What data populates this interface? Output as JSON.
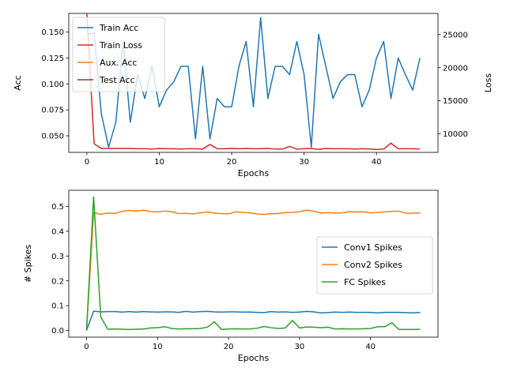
{
  "chart_data": [
    {
      "type": "line",
      "xlabel": "Epochs",
      "ylabel": "Acc",
      "y2label": "Loss",
      "xlim": [
        -2.5,
        48.5
      ],
      "ylim": [
        0.034,
        0.168
      ],
      "y2lim": [
        7200,
        28200
      ],
      "xticks": [
        "0",
        "10",
        "20",
        "30",
        "40"
      ],
      "yticks": [
        "0.050",
        "0.075",
        "0.100",
        "0.125",
        "0.150"
      ],
      "y2ticks": [
        "10000",
        "15000",
        "20000",
        "25000"
      ],
      "legend_position": "top-left",
      "colors": {
        "train_acc": "#1f77b4",
        "train_loss": "#d62728",
        "aux_acc": "#ff7f0e",
        "test_acc": "#8c3b2f"
      },
      "series": [
        {
          "name": "Train Acc",
          "axis": "left",
          "x": [
            0,
            1,
            2,
            3,
            4,
            5,
            6,
            7,
            8,
            9,
            10,
            11,
            12,
            13,
            14,
            15,
            16,
            17,
            18,
            19,
            20,
            21,
            22,
            23,
            24,
            25,
            26,
            27,
            28,
            29,
            30,
            31,
            32,
            33,
            34,
            35,
            36,
            37,
            38,
            39,
            40,
            41,
            42,
            43,
            44,
            45,
            46
          ],
          "values": [
            0.148,
            0.149,
            0.071,
            0.039,
            0.063,
            0.141,
            0.063,
            0.109,
            0.086,
            0.117,
            0.078,
            0.094,
            0.102,
            0.117,
            0.117,
            0.047,
            0.117,
            0.047,
            0.086,
            0.078,
            0.078,
            0.117,
            0.141,
            0.078,
            0.164,
            0.086,
            0.117,
            0.117,
            0.109,
            0.141,
            0.109,
            0.039,
            0.148,
            0.117,
            0.086,
            0.102,
            0.109,
            0.109,
            0.078,
            0.094,
            0.125,
            0.141,
            0.086,
            0.125,
            0.109,
            0.094,
            0.125
          ]
        },
        {
          "name": "Train Loss",
          "axis": "right",
          "x": [
            0,
            1,
            2,
            3,
            4,
            5,
            6,
            7,
            8,
            9,
            10,
            11,
            12,
            13,
            14,
            15,
            16,
            17,
            18,
            19,
            20,
            21,
            22,
            23,
            24,
            25,
            26,
            27,
            28,
            29,
            30,
            31,
            32,
            33,
            34,
            35,
            36,
            37,
            38,
            39,
            40,
            41,
            42,
            43,
            44,
            45,
            46
          ],
          "values": [
            28200,
            8500,
            7800,
            7800,
            7800,
            7800,
            7800,
            7750,
            7750,
            7700,
            7800,
            7750,
            7750,
            7700,
            7750,
            7750,
            7700,
            8400,
            7750,
            7750,
            7800,
            7750,
            7800,
            7750,
            7750,
            7800,
            7700,
            7700,
            8100,
            7700,
            7750,
            7800,
            7650,
            7800,
            7750,
            7750,
            7750,
            7700,
            7750,
            7700,
            7650,
            7700,
            8600,
            7750,
            7750,
            7750,
            7700
          ]
        },
        {
          "name": "Aux. Acc",
          "axis": "left",
          "x": [],
          "values": []
        },
        {
          "name": "Test Acc",
          "axis": "left",
          "x": [],
          "values": []
        }
      ]
    },
    {
      "type": "line",
      "xlabel": "Epochs",
      "ylabel": "# Spikes",
      "xlim": [
        -2.5,
        49.5
      ],
      "ylim": [
        -0.027,
        0.565
      ],
      "xticks": [
        "0",
        "10",
        "20",
        "30",
        "40"
      ],
      "yticks": [
        "0.0",
        "0.1",
        "0.2",
        "0.3",
        "0.4",
        "0.5"
      ],
      "legend_position": "center-right",
      "colors": {
        "conv1": "#1f77b4",
        "conv2": "#ff7f0e",
        "fc": "#2ca02c"
      },
      "series": [
        {
          "name": "Conv1 Spikes",
          "x": [
            0,
            1,
            2,
            3,
            4,
            5,
            6,
            7,
            8,
            9,
            10,
            11,
            12,
            13,
            14,
            15,
            16,
            17,
            18,
            19,
            20,
            21,
            22,
            23,
            24,
            25,
            26,
            27,
            28,
            29,
            30,
            31,
            32,
            33,
            34,
            35,
            36,
            37,
            38,
            39,
            40,
            41,
            42,
            43,
            44,
            45,
            46,
            47
          ],
          "values": [
            0.0,
            0.078,
            0.075,
            0.076,
            0.076,
            0.074,
            0.076,
            0.074,
            0.076,
            0.075,
            0.074,
            0.075,
            0.075,
            0.073,
            0.077,
            0.074,
            0.076,
            0.077,
            0.075,
            0.074,
            0.075,
            0.075,
            0.074,
            0.074,
            0.073,
            0.072,
            0.076,
            0.074,
            0.075,
            0.073,
            0.074,
            0.077,
            0.075,
            0.071,
            0.072,
            0.074,
            0.073,
            0.074,
            0.073,
            0.073,
            0.073,
            0.071,
            0.073,
            0.073,
            0.073,
            0.072,
            0.071,
            0.073
          ]
        },
        {
          "name": "Conv2 Spikes",
          "x": [
            0,
            1,
            2,
            3,
            4,
            5,
            6,
            7,
            8,
            9,
            10,
            11,
            12,
            13,
            14,
            15,
            16,
            17,
            18,
            19,
            20,
            21,
            22,
            23,
            24,
            25,
            26,
            27,
            28,
            29,
            30,
            31,
            32,
            33,
            34,
            35,
            36,
            37,
            38,
            39,
            40,
            41,
            42,
            43,
            44,
            45,
            46,
            47
          ],
          "values": [
            0.0,
            0.475,
            0.468,
            0.473,
            0.472,
            0.48,
            0.484,
            0.481,
            0.485,
            0.479,
            0.478,
            0.481,
            0.479,
            0.471,
            0.472,
            0.47,
            0.474,
            0.478,
            0.473,
            0.471,
            0.47,
            0.478,
            0.476,
            0.474,
            0.47,
            0.468,
            0.471,
            0.471,
            0.475,
            0.476,
            0.478,
            0.485,
            0.481,
            0.473,
            0.475,
            0.473,
            0.474,
            0.479,
            0.478,
            0.478,
            0.474,
            0.476,
            0.478,
            0.48,
            0.481,
            0.472,
            0.473,
            0.474
          ]
        },
        {
          "name": "FC Spikes",
          "x": [
            0,
            1,
            2,
            3,
            4,
            5,
            6,
            7,
            8,
            9,
            10,
            11,
            12,
            13,
            14,
            15,
            16,
            17,
            18,
            19,
            20,
            21,
            22,
            23,
            24,
            25,
            26,
            27,
            28,
            29,
            30,
            31,
            32,
            33,
            34,
            35,
            36,
            37,
            38,
            39,
            40,
            41,
            42,
            43,
            44,
            45,
            46,
            47
          ],
          "values": [
            0.0,
            0.538,
            0.055,
            0.005,
            0.006,
            0.005,
            0.004,
            0.005,
            0.006,
            0.01,
            0.011,
            0.015,
            0.008,
            0.006,
            0.007,
            0.007,
            0.008,
            0.013,
            0.035,
            0.004,
            0.006,
            0.007,
            0.006,
            0.006,
            0.009,
            0.016,
            0.011,
            0.008,
            0.01,
            0.04,
            0.01,
            0.014,
            0.013,
            0.011,
            0.013,
            0.006,
            0.007,
            0.006,
            0.006,
            0.007,
            0.008,
            0.015,
            0.015,
            0.031,
            0.004,
            0.004,
            0.004,
            0.005
          ]
        }
      ]
    }
  ]
}
